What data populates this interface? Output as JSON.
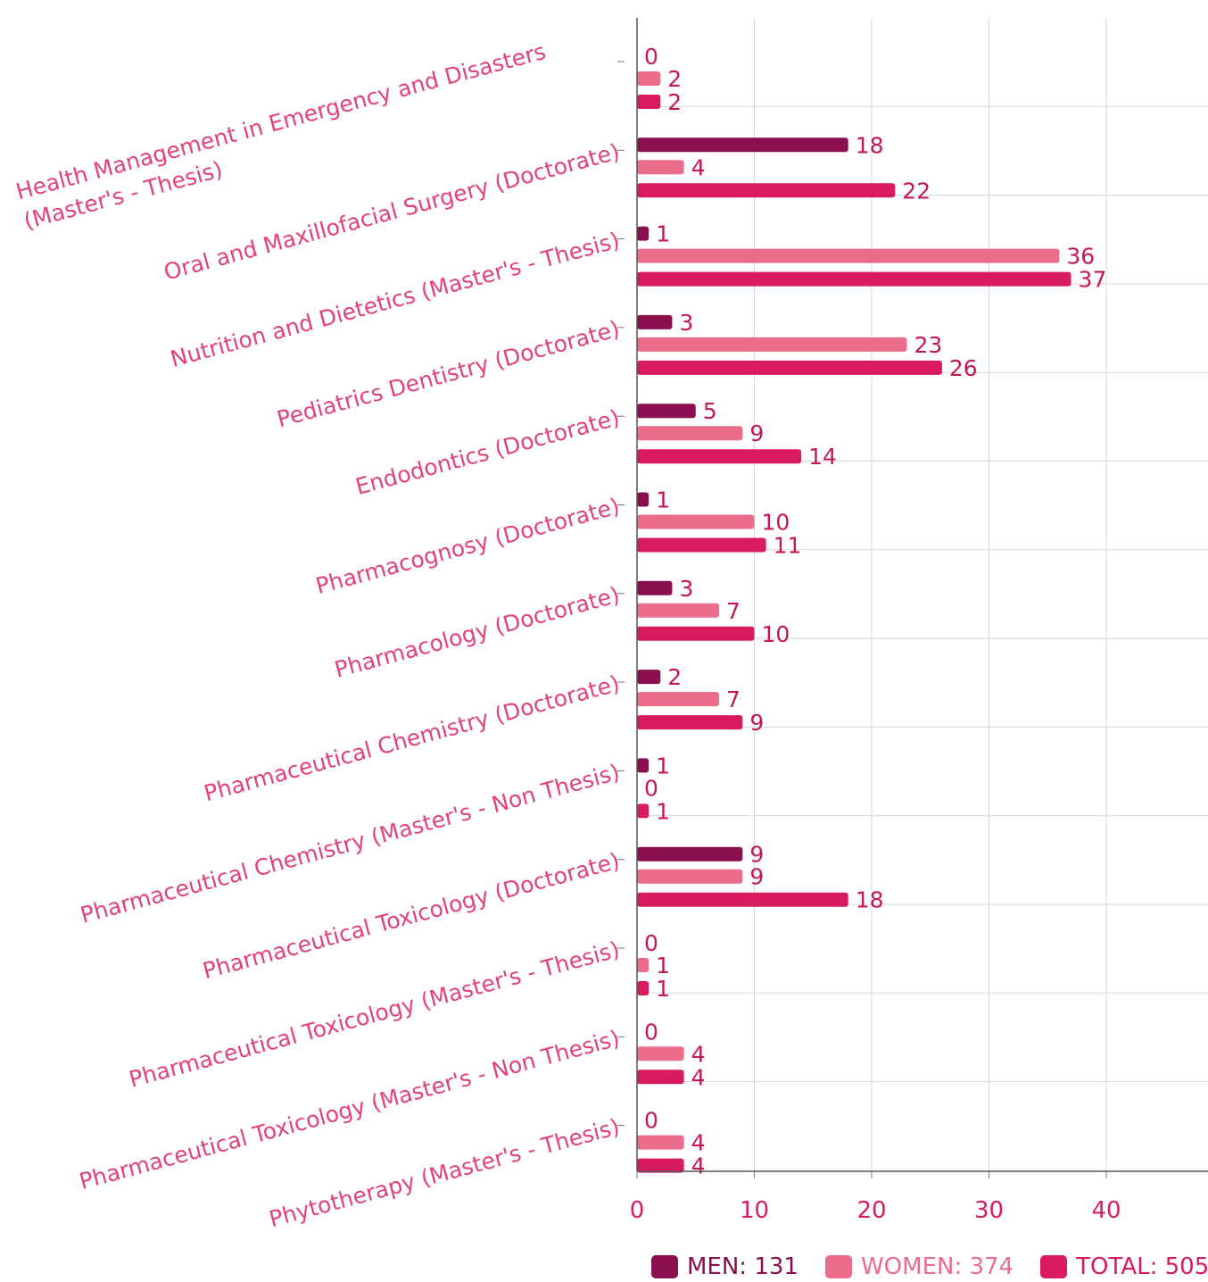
{
  "chart_data": {
    "type": "bar",
    "orientation": "horizontal",
    "categories": [
      "Health Management in Emergency and Disasters (Master's - Thesis)",
      "Oral and Maxillofacial Surgery (Doctorate)",
      "Nutrition and Dietetics (Master's - Thesis)",
      "Pediatrics Dentistry (Doctorate)",
      "Endodontics (Doctorate)",
      "Pharmacognosy (Doctorate)",
      "Pharmacology (Doctorate)",
      "Pharmaceutical Chemistry (Doctorate)",
      "Pharmaceutical Chemistry (Master's - Non Thesis)",
      "Pharmaceutical Toxicology (Doctorate)",
      "Pharmaceutical Toxicology (Master's - Thesis)",
      "Pharmaceutical Toxicology (Master's - Non Thesis)",
      "Phytotherapy (Master's - Thesis)"
    ],
    "category_lines": [
      [
        "Health Management in Emergency and Disasters",
        "(Master's - Thesis)"
      ],
      [
        "Oral and Maxillofacial Surgery (Doctorate)"
      ],
      [
        "Nutrition and Dietetics (Master's - Thesis)"
      ],
      [
        "Pediatrics Dentistry (Doctorate)"
      ],
      [
        "Endodontics (Doctorate)"
      ],
      [
        "Pharmacognosy (Doctorate)"
      ],
      [
        "Pharmacology (Doctorate)"
      ],
      [
        "Pharmaceutical Chemistry (Doctorate)"
      ],
      [
        "Pharmaceutical Chemistry (Master's - Non Thesis)"
      ],
      [
        "Pharmaceutical Toxicology (Doctorate)"
      ],
      [
        "Pharmaceutical Toxicology (Master's - Thesis)"
      ],
      [
        "Pharmaceutical Toxicology (Master's - Non Thesis)"
      ],
      [
        "Phytotherapy (Master's - Thesis)"
      ]
    ],
    "series": [
      {
        "name": "MEN",
        "color": "#8a0f4f",
        "values": [
          0,
          18,
          1,
          3,
          5,
          1,
          3,
          2,
          1,
          9,
          0,
          0,
          0
        ]
      },
      {
        "name": "WOMEN",
        "color": "#ec6c8c",
        "values": [
          2,
          4,
          36,
          23,
          9,
          10,
          7,
          7,
          0,
          9,
          1,
          4,
          4
        ]
      },
      {
        "name": "TOTAL",
        "color": "#d81b60",
        "values": [
          2,
          22,
          37,
          26,
          14,
          11,
          10,
          9,
          1,
          18,
          1,
          4,
          4
        ]
      }
    ],
    "xlim": [
      0,
      48
    ],
    "xticks": [
      0,
      10,
      20,
      30,
      40
    ],
    "grid": true,
    "legend_position": "bottom-right",
    "legend": [
      {
        "label": "MEN: 131",
        "color": "#8a0f4f"
      },
      {
        "label": "WOMEN: 374",
        "color": "#ec6c8c"
      },
      {
        "label": "TOTAL: 505",
        "color": "#d81b60"
      }
    ]
  }
}
